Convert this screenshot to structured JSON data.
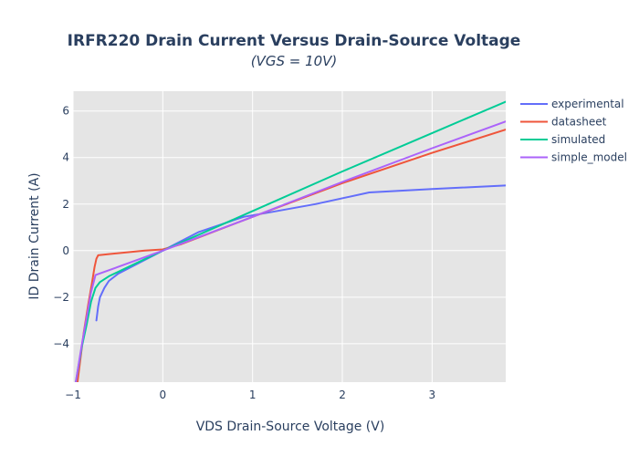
{
  "chart_data": {
    "type": "line",
    "title": "IRFR220 Drain Current Versus Drain-Source Voltage",
    "subtitle": "(VGS = 10V)",
    "xlabel": "VDS Drain-Source Voltage (V)",
    "ylabel": "ID Drain Current (A)",
    "xlim": [
      -1.0,
      3.82
    ],
    "ylim": [
      -5.65,
      6.85
    ],
    "x_ticks": [
      -1,
      0,
      1,
      2,
      3
    ],
    "y_ticks": [
      -4,
      -2,
      0,
      2,
      4,
      6
    ],
    "x_tick_labels": [
      "−1",
      "0",
      "1",
      "2",
      "3"
    ],
    "y_tick_labels": [
      "−4",
      "−2",
      "0",
      "2",
      "4",
      "6"
    ],
    "grid": true,
    "legend_position": "top-right",
    "plot_background": "#e5e5e5",
    "series": [
      {
        "name": "experimental",
        "color": "#636efa",
        "points": [
          [
            -0.74,
            -3.0
          ],
          [
            -0.72,
            -2.4
          ],
          [
            -0.7,
            -2.0
          ],
          [
            -0.65,
            -1.6
          ],
          [
            -0.6,
            -1.3
          ],
          [
            -0.5,
            -1.0
          ],
          [
            -0.3,
            -0.6
          ],
          [
            0.0,
            0.0
          ],
          [
            0.4,
            0.8
          ],
          [
            0.9,
            1.45
          ],
          [
            1.2,
            1.65
          ],
          [
            1.7,
            2.0
          ],
          [
            2.3,
            2.5
          ],
          [
            3.0,
            2.65
          ],
          [
            3.82,
            2.8
          ]
        ]
      },
      {
        "name": "datasheet",
        "color": "#ef553b",
        "points": [
          [
            -0.95,
            -5.65
          ],
          [
            -0.88,
            -3.5
          ],
          [
            -0.83,
            -2.3
          ],
          [
            -0.79,
            -1.4
          ],
          [
            -0.76,
            -0.7
          ],
          [
            -0.74,
            -0.35
          ],
          [
            -0.72,
            -0.2
          ],
          [
            -0.6,
            -0.15
          ],
          [
            -0.2,
            0.0
          ],
          [
            0.0,
            0.05
          ],
          [
            0.2,
            0.27
          ],
          [
            1.0,
            1.45
          ],
          [
            2.0,
            2.9
          ],
          [
            3.0,
            4.2
          ],
          [
            3.82,
            5.2
          ]
        ]
      },
      {
        "name": "simulated",
        "color": "#00cc96",
        "points": [
          [
            -0.97,
            -5.65
          ],
          [
            -0.9,
            -4.1
          ],
          [
            -0.85,
            -3.2
          ],
          [
            -0.8,
            -2.2
          ],
          [
            -0.75,
            -1.6
          ],
          [
            -0.7,
            -1.35
          ],
          [
            -0.6,
            -1.1
          ],
          [
            -0.3,
            -0.55
          ],
          [
            0.0,
            0.0
          ],
          [
            1.0,
            1.7
          ],
          [
            2.0,
            3.4
          ],
          [
            3.0,
            5.05
          ],
          [
            3.82,
            6.4
          ]
        ]
      },
      {
        "name": "simple_model",
        "color": "#ab63fa",
        "points": [
          [
            -0.97,
            -5.65
          ],
          [
            -0.9,
            -4.0
          ],
          [
            -0.85,
            -2.9
          ],
          [
            -0.8,
            -1.8
          ],
          [
            -0.75,
            -1.05
          ],
          [
            -0.5,
            -0.7
          ],
          [
            0.0,
            0.0
          ],
          [
            1.0,
            1.45
          ],
          [
            2.0,
            2.95
          ],
          [
            3.0,
            4.4
          ],
          [
            3.82,
            5.55
          ]
        ]
      }
    ]
  }
}
